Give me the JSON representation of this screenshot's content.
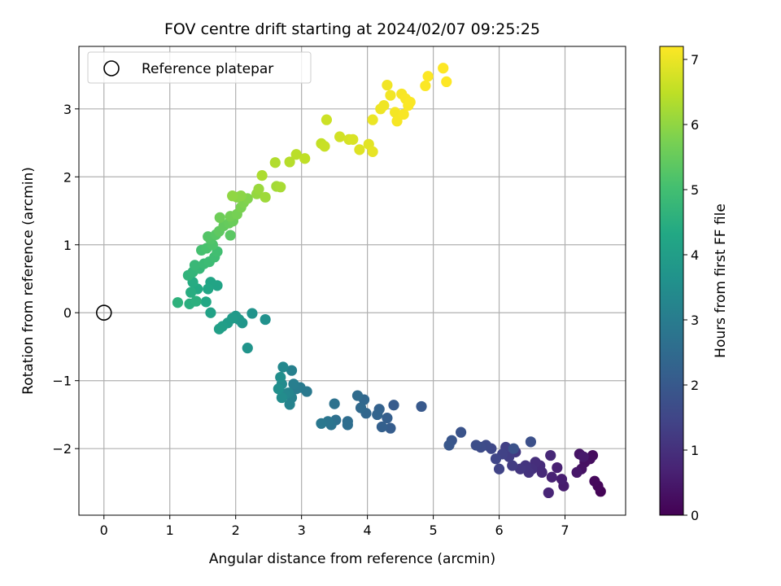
{
  "chart_data": {
    "type": "scatter",
    "title": "FOV centre drift starting at 2024/02/07 09:25:25",
    "xlabel": "Angular distance from reference (arcmin)",
    "ylabel": "Rotation from reference (arcmin)",
    "xlim": [
      -0.38,
      7.92
    ],
    "ylim": [
      -2.98,
      3.92
    ],
    "xticks": [
      0,
      1,
      2,
      3,
      4,
      5,
      6,
      7
    ],
    "yticks": [
      -2,
      -1,
      0,
      1,
      2,
      3
    ],
    "grid": true,
    "legend": {
      "position": "top-left",
      "entries": [
        "Reference platepar"
      ]
    },
    "reference_point": {
      "x": 0,
      "y": 0,
      "label": "Reference platepar"
    },
    "colorbar": {
      "label": "Hours from first FF file",
      "colormap": "viridis",
      "range": [
        0,
        7.2
      ],
      "ticks": [
        0,
        1,
        2,
        3,
        4,
        5,
        6,
        7
      ]
    },
    "points": [
      [
        7.54,
        -2.63,
        0.05
      ],
      [
        7.5,
        -2.55,
        0.1
      ],
      [
        7.45,
        -2.48,
        0.15
      ],
      [
        7.42,
        -2.1,
        0.2
      ],
      [
        7.38,
        -2.15,
        0.25
      ],
      [
        7.3,
        -2.2,
        0.3
      ],
      [
        7.25,
        -2.3,
        0.35
      ],
      [
        7.22,
        -2.08,
        0.4
      ],
      [
        7.18,
        -2.35,
        0.45
      ],
      [
        7.28,
        -2.12,
        0.5
      ],
      [
        6.98,
        -2.55,
        0.55
      ],
      [
        6.95,
        -2.45,
        0.6
      ],
      [
        6.88,
        -2.28,
        0.65
      ],
      [
        6.8,
        -2.42,
        0.7
      ],
      [
        6.75,
        -2.65,
        0.75
      ],
      [
        6.78,
        -2.1,
        0.8
      ],
      [
        6.65,
        -2.35,
        0.85
      ],
      [
        6.62,
        -2.25,
        0.9
      ],
      [
        6.55,
        -2.2,
        0.95
      ],
      [
        6.5,
        -2.3,
        1.0
      ],
      [
        6.45,
        -2.35,
        1.05
      ],
      [
        6.4,
        -2.25,
        1.1
      ],
      [
        6.32,
        -2.3,
        1.15
      ],
      [
        6.25,
        -2.05,
        1.2
      ],
      [
        6.2,
        -2.25,
        1.25
      ],
      [
        6.15,
        -2.12,
        1.3
      ],
      [
        6.1,
        -1.98,
        1.35
      ],
      [
        6.05,
        -2.08,
        1.4
      ],
      [
        6.0,
        -2.3,
        1.45
      ],
      [
        5.95,
        -2.15,
        1.5
      ],
      [
        5.88,
        -2.0,
        1.55
      ],
      [
        5.8,
        -1.95,
        1.6
      ],
      [
        5.72,
        -1.98,
        1.65
      ],
      [
        5.65,
        -1.95,
        1.7
      ],
      [
        6.48,
        -1.9,
        1.75
      ],
      [
        6.22,
        -2.0,
        1.8
      ],
      [
        5.42,
        -1.76,
        1.85
      ],
      [
        5.28,
        -1.88,
        1.9
      ],
      [
        5.24,
        -1.95,
        1.95
      ],
      [
        4.82,
        -1.38,
        2.0
      ],
      [
        4.4,
        -1.36,
        2.05
      ],
      [
        4.35,
        -1.7,
        2.1
      ],
      [
        4.3,
        -1.55,
        2.15
      ],
      [
        4.22,
        -1.68,
        2.2
      ],
      [
        4.18,
        -1.42,
        2.25
      ],
      [
        4.15,
        -1.5,
        2.3
      ],
      [
        3.98,
        -1.48,
        2.35
      ],
      [
        3.95,
        -1.28,
        2.4
      ],
      [
        3.9,
        -1.4,
        2.45
      ],
      [
        3.85,
        -1.22,
        2.5
      ],
      [
        3.7,
        -1.6,
        2.55
      ],
      [
        3.7,
        -1.65,
        2.6
      ],
      [
        3.52,
        -1.58,
        2.65
      ],
      [
        3.5,
        -1.34,
        2.7
      ],
      [
        3.45,
        -1.65,
        2.75
      ],
      [
        3.4,
        -1.6,
        2.8
      ],
      [
        3.3,
        -1.63,
        2.85
      ],
      [
        3.08,
        -1.16,
        2.9
      ],
      [
        2.98,
        -1.1,
        2.95
      ],
      [
        2.92,
        -1.12,
        3.0
      ],
      [
        2.88,
        -1.05,
        3.05
      ],
      [
        2.85,
        -0.85,
        3.1
      ],
      [
        2.85,
        -1.25,
        3.15
      ],
      [
        2.82,
        -1.35,
        3.2
      ],
      [
        2.8,
        -1.18,
        3.25
      ],
      [
        2.75,
        -1.2,
        3.3
      ],
      [
        2.72,
        -0.8,
        3.35
      ],
      [
        2.7,
        -1.05,
        3.4
      ],
      [
        2.7,
        -1.25,
        3.45
      ],
      [
        2.68,
        -0.95,
        3.5
      ],
      [
        2.65,
        -1.12,
        3.55
      ],
      [
        2.45,
        -0.1,
        3.6
      ],
      [
        2.25,
        -0.01,
        3.65
      ],
      [
        2.18,
        -0.52,
        3.7
      ],
      [
        2.1,
        -0.15,
        3.75
      ],
      [
        2.05,
        -0.1,
        3.8
      ],
      [
        2.0,
        -0.05,
        3.85
      ],
      [
        1.95,
        -0.08,
        3.9
      ],
      [
        1.88,
        -0.15,
        3.95
      ],
      [
        1.8,
        -0.2,
        4.0
      ],
      [
        1.75,
        -0.24,
        4.05
      ],
      [
        1.62,
        0.0,
        4.1
      ],
      [
        1.72,
        0.4,
        4.15
      ],
      [
        1.62,
        0.45,
        4.2
      ],
      [
        1.58,
        0.35,
        4.25
      ],
      [
        1.55,
        0.16,
        4.3
      ],
      [
        1.42,
        0.35,
        4.35
      ],
      [
        1.35,
        0.45,
        4.4
      ],
      [
        1.32,
        0.3,
        4.45
      ],
      [
        1.3,
        0.13,
        4.5
      ],
      [
        1.4,
        0.17,
        4.55
      ],
      [
        1.12,
        0.15,
        4.6
      ],
      [
        1.28,
        0.55,
        4.65
      ],
      [
        1.35,
        0.6,
        4.7
      ],
      [
        1.45,
        0.65,
        4.75
      ],
      [
        1.38,
        0.7,
        4.8
      ],
      [
        1.52,
        0.72,
        4.85
      ],
      [
        1.6,
        0.75,
        4.9
      ],
      [
        1.68,
        0.82,
        4.95
      ],
      [
        1.72,
        0.9,
        5.0
      ],
      [
        1.48,
        0.92,
        5.05
      ],
      [
        1.56,
        0.95,
        5.1
      ],
      [
        1.65,
        1.0,
        5.15
      ],
      [
        1.62,
        1.08,
        5.2
      ],
      [
        1.58,
        1.12,
        5.25
      ],
      [
        1.7,
        1.15,
        5.3
      ],
      [
        1.92,
        1.14,
        5.35
      ],
      [
        1.75,
        1.2,
        5.4
      ],
      [
        1.82,
        1.28,
        5.45
      ],
      [
        1.9,
        1.32,
        5.5
      ],
      [
        1.96,
        1.35,
        5.55
      ],
      [
        1.76,
        1.4,
        5.6
      ],
      [
        1.92,
        1.42,
        5.65
      ],
      [
        2.02,
        1.45,
        5.7
      ],
      [
        2.08,
        1.55,
        5.75
      ],
      [
        2.12,
        1.62,
        5.8
      ],
      [
        2.18,
        1.68,
        5.85
      ],
      [
        2.02,
        1.7,
        5.9
      ],
      [
        2.08,
        1.72,
        5.95
      ],
      [
        1.95,
        1.72,
        6.0
      ],
      [
        2.32,
        1.75,
        6.05
      ],
      [
        2.35,
        1.82,
        6.1
      ],
      [
        2.45,
        1.7,
        6.15
      ],
      [
        2.62,
        1.86,
        6.2
      ],
      [
        2.68,
        1.85,
        6.25
      ],
      [
        2.4,
        2.02,
        6.3
      ],
      [
        2.6,
        2.21,
        6.35
      ],
      [
        2.82,
        2.22,
        6.4
      ],
      [
        2.92,
        2.33,
        6.45
      ],
      [
        3.05,
        2.27,
        6.5
      ],
      [
        3.3,
        2.49,
        6.55
      ],
      [
        3.35,
        2.45,
        6.6
      ],
      [
        3.38,
        2.84,
        6.65
      ],
      [
        3.58,
        2.59,
        6.7
      ],
      [
        3.72,
        2.55,
        6.75
      ],
      [
        3.78,
        2.55,
        6.8
      ],
      [
        3.88,
        2.4,
        6.85
      ],
      [
        4.02,
        2.48,
        6.9
      ],
      [
        4.08,
        2.37,
        6.95
      ],
      [
        4.08,
        2.84,
        7.0
      ],
      [
        4.2,
        3.0,
        7.02
      ],
      [
        4.25,
        3.05,
        7.04
      ],
      [
        4.3,
        3.35,
        7.06
      ],
      [
        4.35,
        3.2,
        7.08
      ],
      [
        4.42,
        2.95,
        7.1
      ],
      [
        4.45,
        2.82,
        7.12
      ],
      [
        4.52,
        3.22,
        7.13
      ],
      [
        4.55,
        2.92,
        7.14
      ],
      [
        4.58,
        3.15,
        7.15
      ],
      [
        4.62,
        3.05,
        7.16
      ],
      [
        4.65,
        3.1,
        7.17
      ],
      [
        4.88,
        3.34,
        7.18
      ],
      [
        4.92,
        3.48,
        7.19
      ],
      [
        5.15,
        3.6,
        7.2
      ],
      [
        5.2,
        3.4,
        7.2
      ]
    ]
  }
}
